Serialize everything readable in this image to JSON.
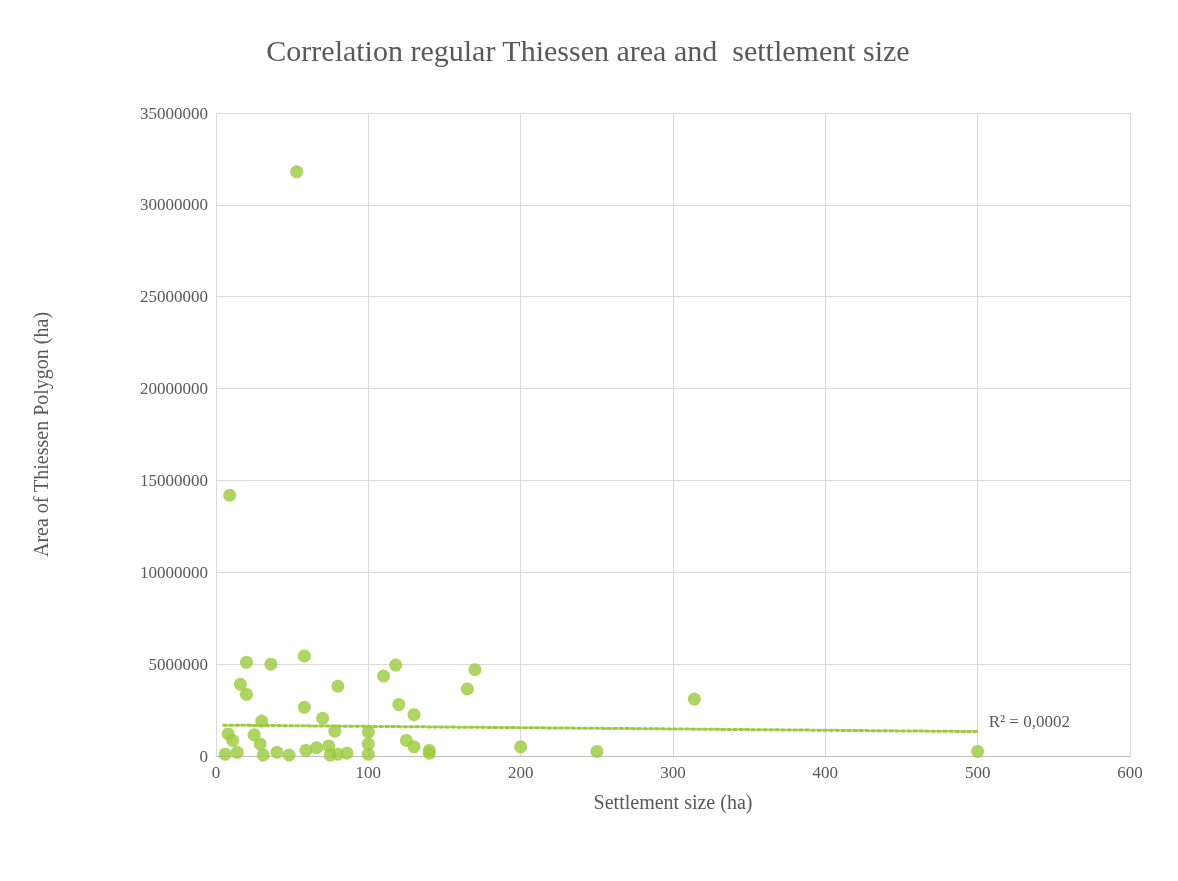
{
  "chart_data": {
    "type": "scatter",
    "title": "Correlation regular Thiessen area and  settlement size",
    "xlabel": "Settlement size (ha)",
    "ylabel": "Area of Thiessen Polygon (ha)",
    "xlim": [
      0,
      600
    ],
    "xticks": [
      0,
      100,
      200,
      300,
      400,
      500,
      600
    ],
    "ylim": [
      0,
      35000000
    ],
    "yticks": [
      0,
      5000000,
      10000000,
      15000000,
      20000000,
      25000000,
      30000000,
      35000000
    ],
    "grid": true,
    "annotations": [
      {
        "text": "R² = 0,0002",
        "x": 500,
        "y": 1330000
      }
    ],
    "series": [
      {
        "color": "#9acb3c",
        "marker": "circle",
        "x": [
          53,
          9,
          20,
          58,
          36,
          16,
          20,
          80,
          58,
          30,
          70,
          110,
          118,
          120,
          130,
          165,
          170,
          314,
          200,
          250,
          500,
          8,
          11,
          25,
          29,
          78,
          100,
          100,
          100,
          125,
          130,
          140,
          140,
          86,
          6,
          14,
          31,
          40,
          48,
          59,
          66,
          74,
          75,
          80
        ],
        "values": [
          31800000,
          14200000,
          5100000,
          5450000,
          5000000,
          3900000,
          3350000,
          3800000,
          2650000,
          1900000,
          2050000,
          4350000,
          4950000,
          2800000,
          2250000,
          3650000,
          4700000,
          3100000,
          500000,
          250000,
          250000,
          1200000,
          850000,
          1150000,
          650000,
          1350000,
          1300000,
          650000,
          100000,
          850000,
          500000,
          150000,
          300000,
          150000,
          100000,
          200000,
          50000,
          200000,
          50000,
          300000,
          450000,
          550000,
          50000,
          100000
        ]
      },
      {
        "type": "line",
        "color": "#9acb3c",
        "line_style": "dotted",
        "x": [
          5,
          500
        ],
        "values": [
          1680000,
          1330000
        ]
      }
    ]
  }
}
